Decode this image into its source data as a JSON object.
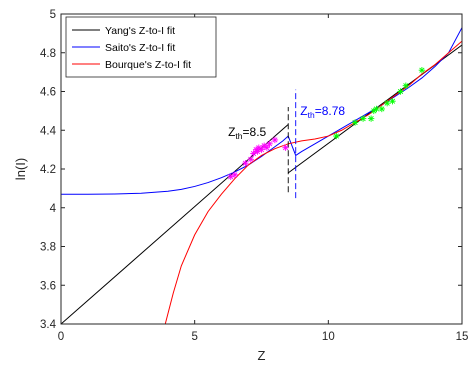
{
  "chart_data": {
    "type": "line",
    "xlabel": "Z",
    "ylabel": "ln(I)",
    "xlim": [
      0,
      15
    ],
    "ylim": [
      3.4,
      5
    ],
    "xticks": [
      0,
      5,
      10,
      15
    ],
    "yticks": [
      3.4,
      3.6,
      3.8,
      4.0,
      4.2,
      4.4,
      4.6,
      4.8,
      5.0
    ],
    "grid": false,
    "legend_position": "top-left",
    "series": [
      {
        "name": "Yang's Z-to-I fit",
        "color": "#000000",
        "segments": [
          [
            [
              0,
              3.4
            ],
            [
              8.5,
              4.43
            ]
          ],
          [
            [
              8.5,
              4.18
            ],
            [
              15,
              4.84
            ]
          ]
        ]
      },
      {
        "name": "Saito's Z-to-I fit",
        "color": "#0000ff",
        "points": [
          [
            0,
            4.07
          ],
          [
            1,
            4.07
          ],
          [
            2,
            4.071
          ],
          [
            3,
            4.075
          ],
          [
            4,
            4.085
          ],
          [
            4.5,
            4.095
          ],
          [
            5,
            4.11
          ],
          [
            5.5,
            4.13
          ],
          [
            6,
            4.155
          ],
          [
            6.5,
            4.185
          ],
          [
            7,
            4.22
          ],
          [
            7.5,
            4.265
          ],
          [
            8,
            4.315
          ],
          [
            8.3,
            4.345
          ],
          [
            8.5,
            4.37
          ],
          [
            8.78,
            4.27
          ],
          [
            9,
            4.29
          ],
          [
            9.5,
            4.33
          ],
          [
            10,
            4.37
          ],
          [
            10.5,
            4.41
          ],
          [
            11,
            4.45
          ],
          [
            11.5,
            4.49
          ],
          [
            12,
            4.53
          ],
          [
            12.5,
            4.575
          ],
          [
            13,
            4.62
          ],
          [
            13.5,
            4.67
          ],
          [
            14,
            4.73
          ],
          [
            14.5,
            4.8
          ],
          [
            15,
            4.93
          ]
        ]
      },
      {
        "name": "Bourque's Z-to-I fit",
        "color": "#ff0000",
        "points": [
          [
            3.9,
            3.4
          ],
          [
            4.2,
            3.56
          ],
          [
            4.5,
            3.7
          ],
          [
            5,
            3.86
          ],
          [
            5.5,
            3.98
          ],
          [
            6,
            4.07
          ],
          [
            6.5,
            4.15
          ],
          [
            7,
            4.22
          ],
          [
            7.5,
            4.27
          ],
          [
            8,
            4.305
          ],
          [
            8.5,
            4.33
          ],
          [
            9,
            4.345
          ],
          [
            9.5,
            4.355
          ],
          [
            10,
            4.37
          ],
          [
            10.5,
            4.4
          ],
          [
            11,
            4.44
          ],
          [
            11.5,
            4.48
          ],
          [
            12,
            4.53
          ],
          [
            12.5,
            4.58
          ],
          [
            13,
            4.63
          ],
          [
            13.5,
            4.69
          ],
          [
            14,
            4.74
          ],
          [
            14.5,
            4.8
          ],
          [
            15,
            4.86
          ]
        ]
      }
    ],
    "scatter": [
      {
        "color": "#ff00ff",
        "marker": "*",
        "points": [
          [
            6.35,
            4.16
          ],
          [
            6.5,
            4.17
          ],
          [
            6.9,
            4.23
          ],
          [
            7.1,
            4.25
          ],
          [
            7.2,
            4.28
          ],
          [
            7.3,
            4.3
          ],
          [
            7.35,
            4.29
          ],
          [
            7.4,
            4.31
          ],
          [
            7.5,
            4.3
          ],
          [
            7.6,
            4.32
          ],
          [
            7.7,
            4.31
          ],
          [
            7.8,
            4.33
          ],
          [
            8.0,
            4.35
          ],
          [
            8.4,
            4.31
          ]
        ]
      },
      {
        "color": "#00ff00",
        "marker": "*",
        "points": [
          [
            10.3,
            4.37
          ],
          [
            11.0,
            4.44
          ],
          [
            11.3,
            4.46
          ],
          [
            11.6,
            4.46
          ],
          [
            11.7,
            4.5
          ],
          [
            11.8,
            4.51
          ],
          [
            12.0,
            4.51
          ],
          [
            12.2,
            4.54
          ],
          [
            12.4,
            4.55
          ],
          [
            12.7,
            4.6
          ],
          [
            12.9,
            4.63
          ],
          [
            13.5,
            4.71
          ]
        ]
      }
    ],
    "thresholds": [
      {
        "label_main": "Z",
        "label_sub": "th",
        "label_value": "=8.5",
        "x": 8.5,
        "y_low": 4.08,
        "y_high": 4.52,
        "color": "#000000",
        "label_x": 6.25,
        "label_y": 4.37
      },
      {
        "label_main": "Z",
        "label_sub": "th",
        "label_value": "=8.78",
        "x": 8.78,
        "y_low": 4.05,
        "y_high": 4.61,
        "color": "#0000ff",
        "label_x": 8.95,
        "label_y": 4.48
      }
    ]
  }
}
